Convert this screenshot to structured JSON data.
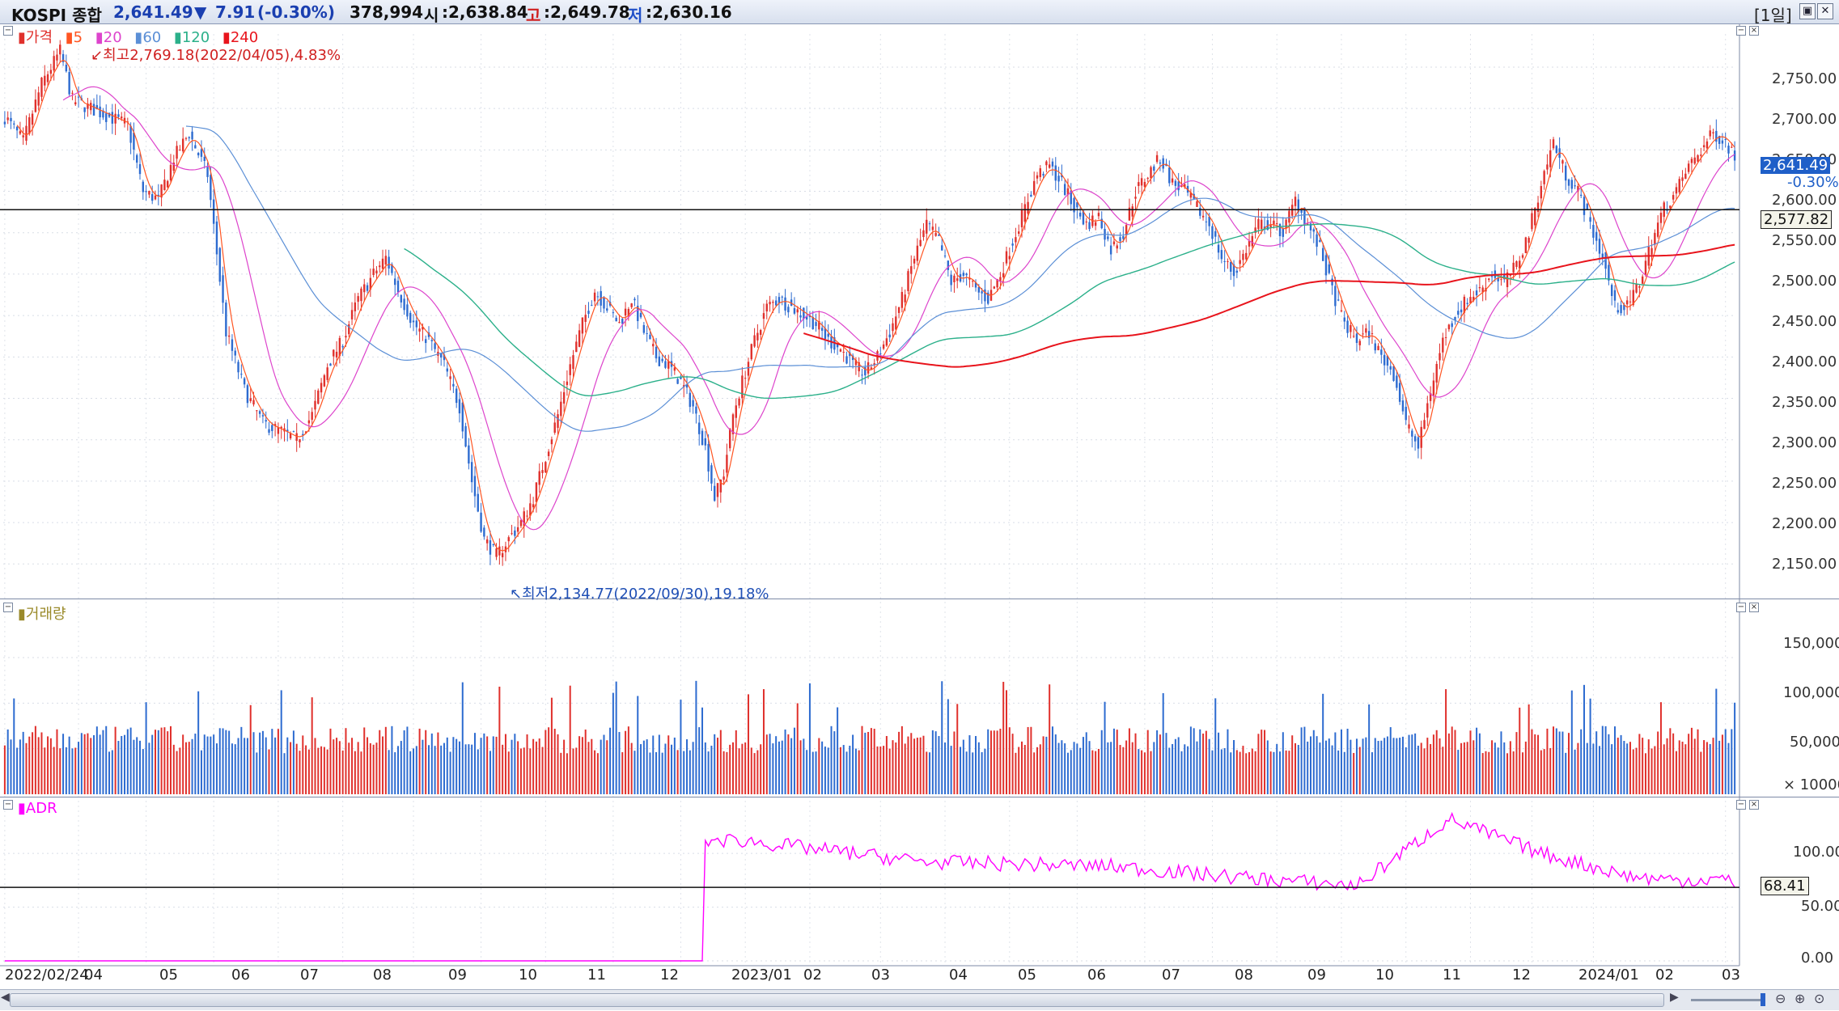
{
  "title_bar": {
    "name": "KOSPI 종합",
    "price": "2,641.49",
    "change_arrow": "▼",
    "change": "7.91",
    "change_pct": "(-0.30%)",
    "volume": "378,994",
    "open_label": "시",
    "open": ":2,638.84",
    "high_label": "고",
    "high": ":2,649.78",
    "low_label": "저",
    "low": ":2,630.16",
    "period": "[1일]"
  },
  "colors": {
    "up": "#e0302c",
    "down": "#2d6bd0",
    "ma5": "#ff5522",
    "ma20": "#dd44cc",
    "ma60": "#5b8fd6",
    "ma120": "#2bb08a",
    "ma240": "#e8141c",
    "adr": "#ff00ff",
    "period_label": "#1a1aa8"
  },
  "price_panel": {
    "legend": [
      {
        "label": "가격",
        "color": "#e0302c"
      },
      {
        "label": "5",
        "color": "#ff5522"
      },
      {
        "label": "20",
        "color": "#dd44cc"
      },
      {
        "label": "60",
        "color": "#5b8fd6"
      },
      {
        "label": "120",
        "color": "#2bb08a"
      },
      {
        "label": "240",
        "color": "#e8141c"
      }
    ],
    "max_annotation": "최고2,769.18(2022/04/05),4.83%",
    "min_annotation": "최저2,134.77(2022/09/30),19.18%",
    "current_price_tag": "2,641.49",
    "current_change_tag": "-0.30%",
    "hline_tag": "2,577.82",
    "y_ticks": [
      "2,750.00",
      "2,700.00",
      "2,650.00",
      "2,600.00",
      "2,550.00",
      "2,500.00",
      "2,450.00",
      "2,400.00",
      "2,350.00",
      "2,300.00",
      "2,250.00",
      "2,200.00",
      "2,150.00"
    ]
  },
  "volume_panel": {
    "legend": "거래량",
    "unit": "× 10000",
    "y_ticks": [
      "150,000",
      "100,000",
      "50,000"
    ]
  },
  "adr_panel": {
    "legend": "ADR",
    "hline_tag": "68.41",
    "y_ticks": [
      "100.00",
      "50.00",
      "0.00"
    ]
  },
  "x_axis": {
    "labels": [
      "2022/02/24",
      "04",
      "05",
      "06",
      "07",
      "08",
      "09",
      "10",
      "11",
      "12",
      "2023/01",
      "02",
      "03",
      "04",
      "05",
      "06",
      "07",
      "08",
      "09",
      "10",
      "11",
      "12",
      "2024/01",
      "02",
      "03"
    ]
  },
  "chart_data": {
    "type": "candlestick",
    "y_range": [
      2120,
      2790
    ],
    "volume_range": [
      0,
      190000
    ],
    "adr_range": [
      0,
      140
    ],
    "months": [
      "2022/02",
      "2022/03",
      "2022/04",
      "2022/05",
      "2022/06",
      "2022/07",
      "2022/08",
      "2022/09",
      "2022/10",
      "2022/11",
      "2022/12",
      "2023/01",
      "2023/02",
      "2023/03",
      "2023/04",
      "2023/05",
      "2023/06",
      "2023/07",
      "2023/08",
      "2023/09",
      "2023/10",
      "2023/11",
      "2023/12",
      "2024/01",
      "2024/02",
      "2024/03"
    ],
    "price_path": [
      [
        0,
        2690
      ],
      [
        6,
        2660
      ],
      [
        12,
        2730
      ],
      [
        18,
        2769.18
      ],
      [
        22,
        2710
      ],
      [
        28,
        2700
      ],
      [
        34,
        2690
      ],
      [
        40,
        2680
      ],
      [
        45,
        2600
      ],
      [
        50,
        2590
      ],
      [
        55,
        2640
      ],
      [
        60,
        2670
      ],
      [
        66,
        2620
      ],
      [
        72,
        2430
      ],
      [
        78,
        2360
      ],
      [
        84,
        2320
      ],
      [
        90,
        2310
      ],
      [
        95,
        2300
      ],
      [
        100,
        2330
      ],
      [
        105,
        2390
      ],
      [
        110,
        2420
      ],
      [
        115,
        2470
      ],
      [
        120,
        2500
      ],
      [
        124,
        2520
      ],
      [
        128,
        2480
      ],
      [
        133,
        2440
      ],
      [
        138,
        2420
      ],
      [
        143,
        2390
      ],
      [
        148,
        2340
      ],
      [
        152,
        2250
      ],
      [
        156,
        2180
      ],
      [
        160,
        2160
      ],
      [
        164,
        2180
      ],
      [
        168,
        2200
      ],
      [
        172,
        2230
      ],
      [
        176,
        2280
      ],
      [
        180,
        2330
      ],
      [
        184,
        2390
      ],
      [
        188,
        2440
      ],
      [
        192,
        2480
      ],
      [
        196,
        2460
      ],
      [
        200,
        2440
      ],
      [
        204,
        2470
      ],
      [
        208,
        2430
      ],
      [
        212,
        2400
      ],
      [
        216,
        2390
      ],
      [
        220,
        2370
      ],
      [
        224,
        2340
      ],
      [
        228,
        2290
      ],
      [
        231,
        2230
      ],
      [
        234,
        2260
      ],
      [
        237,
        2330
      ],
      [
        240,
        2370
      ],
      [
        244,
        2420
      ],
      [
        248,
        2460
      ],
      [
        252,
        2470
      ],
      [
        256,
        2460
      ],
      [
        260,
        2450
      ],
      [
        264,
        2440
      ],
      [
        268,
        2420
      ],
      [
        272,
        2410
      ],
      [
        276,
        2390
      ],
      [
        280,
        2380
      ],
      [
        284,
        2400
      ],
      [
        288,
        2430
      ],
      [
        292,
        2470
      ],
      [
        296,
        2520
      ],
      [
        300,
        2560
      ],
      [
        304,
        2540
      ],
      [
        308,
        2490
      ],
      [
        312,
        2500
      ],
      [
        316,
        2480
      ],
      [
        320,
        2470
      ],
      [
        324,
        2500
      ],
      [
        328,
        2540
      ],
      [
        332,
        2580
      ],
      [
        336,
        2620
      ],
      [
        340,
        2630
      ],
      [
        344,
        2610
      ],
      [
        348,
        2580
      ],
      [
        352,
        2560
      ],
      [
        356,
        2570
      ],
      [
        360,
        2530
      ],
      [
        364,
        2550
      ],
      [
        368,
        2600
      ],
      [
        372,
        2620
      ],
      [
        376,
        2640
      ],
      [
        380,
        2610
      ],
      [
        384,
        2600
      ],
      [
        388,
        2580
      ],
      [
        392,
        2560
      ],
      [
        396,
        2520
      ],
      [
        400,
        2500
      ],
      [
        404,
        2530
      ],
      [
        408,
        2560
      ],
      [
        412,
        2560
      ],
      [
        416,
        2550
      ],
      [
        420,
        2590
      ],
      [
        424,
        2560
      ],
      [
        428,
        2530
      ],
      [
        432,
        2480
      ],
      [
        436,
        2440
      ],
      [
        440,
        2420
      ],
      [
        444,
        2430
      ],
      [
        448,
        2400
      ],
      [
        452,
        2380
      ],
      [
        456,
        2320
      ],
      [
        460,
        2290
      ],
      [
        464,
        2360
      ],
      [
        468,
        2420
      ],
      [
        472,
        2450
      ],
      [
        476,
        2470
      ],
      [
        480,
        2480
      ],
      [
        484,
        2500
      ],
      [
        488,
        2490
      ],
      [
        492,
        2510
      ],
      [
        496,
        2550
      ],
      [
        500,
        2610
      ],
      [
        504,
        2660
      ],
      [
        508,
        2620
      ],
      [
        512,
        2600
      ],
      [
        516,
        2560
      ],
      [
        520,
        2520
      ],
      [
        524,
        2460
      ],
      [
        528,
        2460
      ],
      [
        532,
        2490
      ],
      [
        536,
        2540
      ],
      [
        540,
        2580
      ],
      [
        544,
        2600
      ],
      [
        548,
        2630
      ],
      [
        552,
        2650
      ],
      [
        556,
        2670
      ],
      [
        560,
        2660
      ],
      [
        563,
        2641.49
      ]
    ],
    "ma240_path": [
      [
        0,
        2440
      ],
      [
        563,
        2530
      ]
    ],
    "ma120_path": [
      [
        0,
        2500
      ],
      [
        563,
        2515
      ]
    ],
    "adr_path": [
      [
        0,
        0
      ],
      [
        227,
        0
      ],
      [
        228,
        112
      ],
      [
        240,
        112
      ],
      [
        300,
        92
      ],
      [
        360,
        88
      ],
      [
        400,
        78
      ],
      [
        440,
        70
      ],
      [
        470,
        132
      ],
      [
        500,
        100
      ],
      [
        530,
        78
      ],
      [
        545,
        75
      ],
      [
        560,
        76
      ],
      [
        563,
        68.41
      ]
    ]
  }
}
